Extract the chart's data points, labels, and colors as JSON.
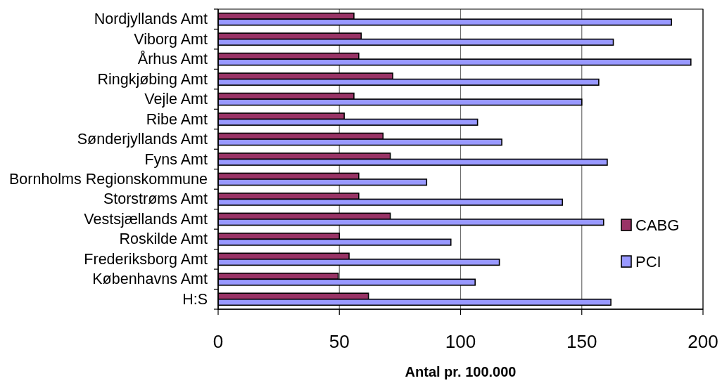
{
  "chart_data": {
    "type": "bar",
    "orientation": "horizontal",
    "categories": [
      "Nordjyllands Amt",
      "Viborg Amt",
      "Århus Amt",
      "Ringkjøbing Amt",
      "Vejle Amt",
      "Ribe Amt",
      "Sønderjyllands Amt",
      "Fyns Amt",
      "Bornholms Regionskommune",
      "Storstrøms Amt",
      "Vestsjællands Amt",
      "Roskilde Amt",
      "Frederiksborg Amt",
      "Københavns Amt",
      "H:S"
    ],
    "series": [
      {
        "name": "CABG",
        "color": "#993366",
        "values": [
          56,
          59,
          58,
          72,
          56,
          52,
          68,
          71,
          58,
          58,
          71,
          50,
          54,
          49.5,
          62
        ]
      },
      {
        "name": "PCI",
        "color": "#9999ff",
        "values": [
          187,
          163,
          195,
          157,
          150,
          107,
          117,
          160.5,
          86,
          142,
          159,
          96,
          116,
          106,
          162
        ]
      }
    ],
    "xlabel": "Antal pr. 100.000",
    "xlim": [
      0,
      200
    ],
    "xticks": [
      0,
      50,
      100,
      150,
      200
    ],
    "grid": "x",
    "legend": "right"
  }
}
